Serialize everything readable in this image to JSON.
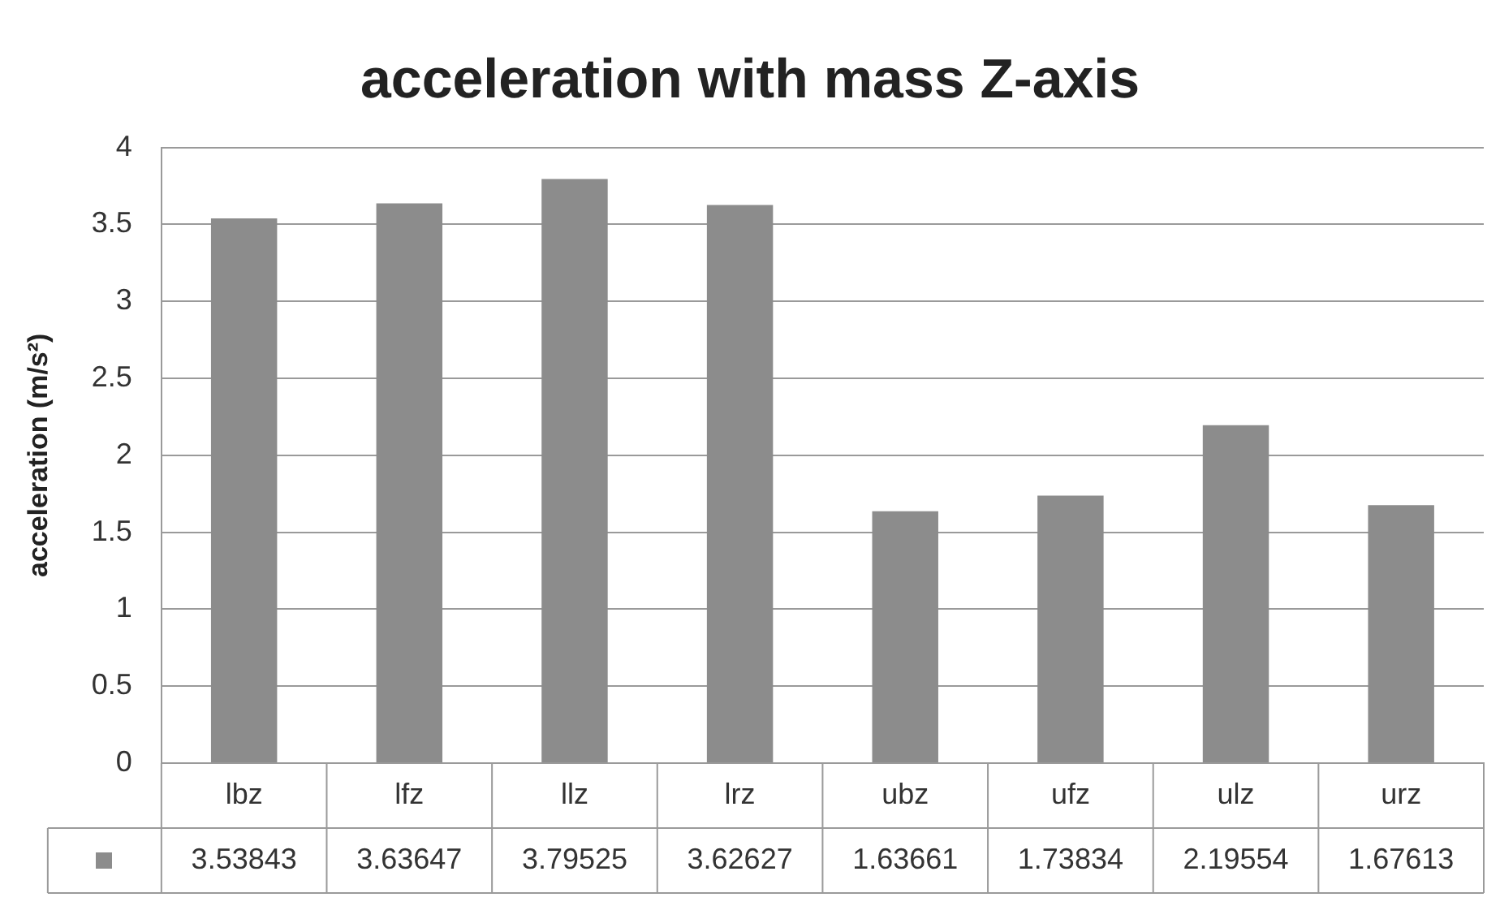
{
  "chart_data": {
    "type": "bar",
    "title": "acceleration with mass Z-axis",
    "ylabel": "acceleration (m/s²)",
    "categories": [
      "lbz",
      "lfz",
      "llz",
      "lrz",
      "ubz",
      "ufz",
      "ulz",
      "urz"
    ],
    "values": [
      3.53843,
      3.63647,
      3.79525,
      3.62627,
      1.63661,
      1.73834,
      2.19554,
      1.67613
    ],
    "color": "#8c8c8c",
    "ylim": [
      0,
      4
    ],
    "yticks": [
      0,
      0.5,
      1,
      1.5,
      2,
      2.5,
      3,
      3.5,
      4
    ],
    "grid": "y",
    "data_labels": true
  }
}
